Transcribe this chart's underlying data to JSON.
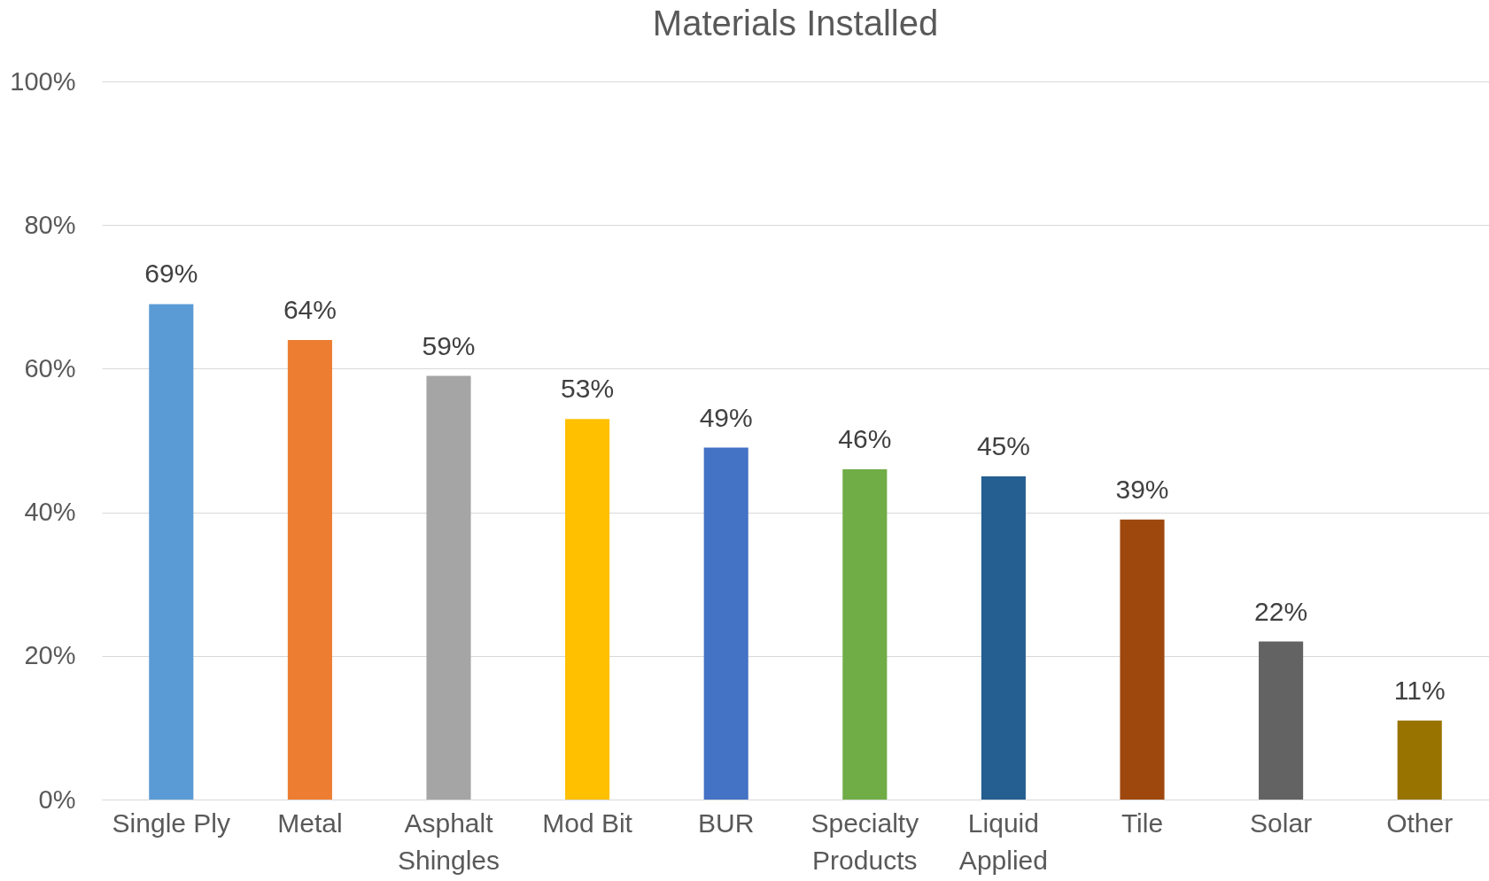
{
  "chart_data": {
    "type": "bar",
    "title": "Materials Installed",
    "categories": [
      "Single Ply",
      "Metal",
      "Asphalt Shingles",
      "Mod Bit",
      "BUR",
      "Specialty Products",
      "Liquid Applied",
      "Tile",
      "Solar",
      "Other"
    ],
    "values": [
      69,
      64,
      59,
      53,
      49,
      46,
      45,
      39,
      22,
      11
    ],
    "value_labels": [
      "69%",
      "64%",
      "59%",
      "53%",
      "49%",
      "46%",
      "45%",
      "39%",
      "22%",
      "11%"
    ],
    "colors": [
      "#5b9bd5",
      "#ed7d31",
      "#a5a5a5",
      "#ffc000",
      "#4472c4",
      "#70ad47",
      "#255e91",
      "#9e480e",
      "#636363",
      "#997300"
    ],
    "ylim": [
      0,
      100
    ],
    "yticks": [
      {
        "value": 0,
        "label": "0%"
      },
      {
        "value": 20,
        "label": "20%"
      },
      {
        "value": 40,
        "label": "40%"
      },
      {
        "value": 60,
        "label": "60%"
      },
      {
        "value": 80,
        "label": "80%"
      },
      {
        "value": 100,
        "label": "100%"
      }
    ],
    "grid": "y"
  }
}
